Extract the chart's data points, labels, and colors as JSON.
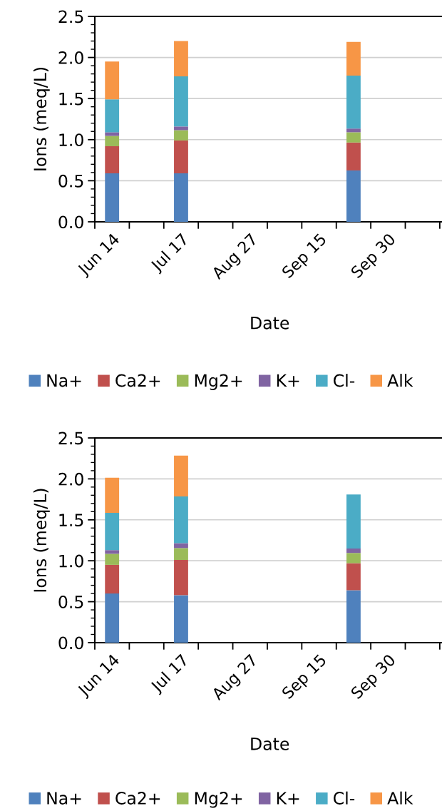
{
  "chart_data": [
    {
      "type": "bar",
      "stacked": true,
      "xlabel": "Date",
      "ylabel": "Ions (meq/L)",
      "categories": [
        "Jun 14",
        null,
        "Jul 17",
        null,
        "Aug 27",
        null,
        "Sep 15",
        null,
        "Sep 30",
        null
      ],
      "series": [
        {
          "name": "Na+",
          "color": "#4f81bd",
          "values": [
            0.59,
            null,
            0.59,
            null,
            null,
            null,
            null,
            0.625,
            null,
            null
          ]
        },
        {
          "name": "Ca2+",
          "color": "#c0504d",
          "values": [
            0.33,
            null,
            0.4,
            null,
            null,
            null,
            null,
            0.34,
            null,
            null
          ]
        },
        {
          "name": "Mg2+",
          "color": "#9bbb59",
          "values": [
            0.125,
            null,
            0.125,
            null,
            null,
            null,
            null,
            0.125,
            null,
            null
          ]
        },
        {
          "name": "K+",
          "color": "#8064a2",
          "values": [
            0.045,
            null,
            0.045,
            null,
            null,
            null,
            null,
            0.045,
            null,
            null
          ]
        },
        {
          "name": "Cl-",
          "color": "#4bacc6",
          "values": [
            0.4,
            null,
            0.61,
            null,
            null,
            null,
            null,
            0.645,
            null,
            null
          ]
        },
        {
          "name": "Alk",
          "color": "#f79646",
          "values": [
            0.46,
            null,
            0.43,
            null,
            null,
            null,
            null,
            0.41,
            null,
            null
          ]
        }
      ],
      "ylim": [
        0,
        2.5
      ],
      "yticks": [
        {
          "value": 0,
          "label": "0.0"
        },
        {
          "value": 0.5,
          "label": "0.5"
        },
        {
          "value": 1,
          "label": "1.0"
        },
        {
          "value": 1.5,
          "label": "1.5"
        },
        {
          "value": 2,
          "label": "2.0"
        },
        {
          "value": 2.5,
          "label": "2.5"
        }
      ],
      "grid": "y",
      "legend": "bottom"
    },
    {
      "type": "bar",
      "stacked": true,
      "xlabel": "Date",
      "ylabel": "Ions (meq/L)",
      "categories": [
        "Jun 14",
        null,
        "Jul 17",
        null,
        "Aug 27",
        null,
        "Sep 15",
        null,
        "Sep 30",
        null
      ],
      "series": [
        {
          "name": "Na+",
          "color": "#4f81bd",
          "values": [
            0.6,
            null,
            0.58,
            null,
            null,
            null,
            null,
            0.64,
            null,
            null
          ]
        },
        {
          "name": "Ca2+",
          "color": "#c0504d",
          "values": [
            0.35,
            null,
            0.43,
            null,
            null,
            null,
            null,
            0.33,
            null,
            null
          ]
        },
        {
          "name": "Mg2+",
          "color": "#9bbb59",
          "values": [
            0.135,
            null,
            0.145,
            null,
            null,
            null,
            null,
            0.125,
            null,
            null
          ]
        },
        {
          "name": "K+",
          "color": "#8064a2",
          "values": [
            0.045,
            null,
            0.06,
            null,
            null,
            null,
            null,
            0.055,
            null,
            null
          ]
        },
        {
          "name": "Cl-",
          "color": "#4bacc6",
          "values": [
            0.455,
            null,
            0.57,
            null,
            null,
            null,
            null,
            0.66,
            null,
            null
          ]
        },
        {
          "name": "Alk",
          "color": "#f79646",
          "values": [
            0.43,
            null,
            0.5,
            null,
            null,
            null,
            null,
            null,
            null,
            null
          ]
        }
      ],
      "ylim": [
        0,
        2.5
      ],
      "yticks": [
        {
          "value": 0,
          "label": "0.0"
        },
        {
          "value": 0.5,
          "label": "0.5"
        },
        {
          "value": 1,
          "label": "1.0"
        },
        {
          "value": 1.5,
          "label": "1.5"
        },
        {
          "value": 2,
          "label": "2.0"
        },
        {
          "value": 2.5,
          "label": "2.5"
        }
      ],
      "grid": "y",
      "legend": "bottom"
    }
  ]
}
